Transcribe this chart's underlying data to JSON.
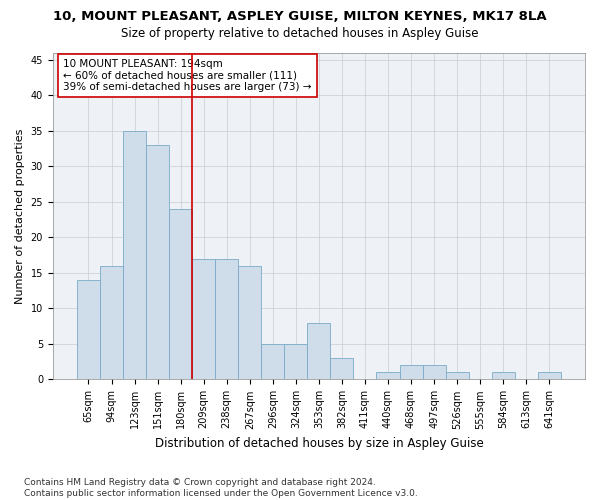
{
  "title": "10, MOUNT PLEASANT, ASPLEY GUISE, MILTON KEYNES, MK17 8LA",
  "subtitle": "Size of property relative to detached houses in Aspley Guise",
  "xlabel": "Distribution of detached houses by size in Aspley Guise",
  "ylabel": "Number of detached properties",
  "categories": [
    "65sqm",
    "94sqm",
    "123sqm",
    "151sqm",
    "180sqm",
    "209sqm",
    "238sqm",
    "267sqm",
    "296sqm",
    "324sqm",
    "353sqm",
    "382sqm",
    "411sqm",
    "440sqm",
    "468sqm",
    "497sqm",
    "526sqm",
    "555sqm",
    "584sqm",
    "613sqm",
    "641sqm"
  ],
  "values": [
    14,
    16,
    35,
    33,
    24,
    17,
    17,
    16,
    5,
    5,
    8,
    3,
    0,
    1,
    2,
    2,
    1,
    0,
    1,
    0,
    1
  ],
  "bar_color": "#cfdce9",
  "bar_edge_color": "#7aaac8",
  "vertical_line_color": "#cc0000",
  "vertical_line_x": 4.5,
  "ylim": [
    0,
    46
  ],
  "yticks": [
    0,
    5,
    10,
    15,
    20,
    25,
    30,
    35,
    40,
    45
  ],
  "annotation_text": "10 MOUNT PLEASANT: 194sqm\n← 60% of detached houses are smaller (111)\n39% of semi-detached houses are larger (73) →",
  "annotation_box_color": "#ffffff",
  "annotation_box_edge": "#cc0000",
  "footnote": "Contains HM Land Registry data © Crown copyright and database right 2024.\nContains public sector information licensed under the Open Government Licence v3.0.",
  "title_fontsize": 9.5,
  "subtitle_fontsize": 8.5,
  "xlabel_fontsize": 8.5,
  "ylabel_fontsize": 8,
  "tick_fontsize": 7,
  "annotation_fontsize": 7.5,
  "footnote_fontsize": 6.5,
  "background_color": "#eef2f7",
  "grid_color": "#c8cdd4"
}
